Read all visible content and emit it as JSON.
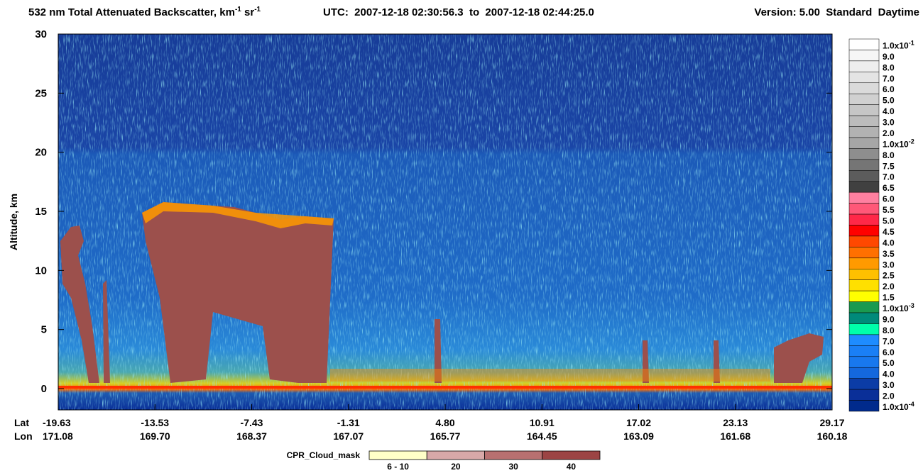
{
  "chart_data": {
    "type": "curtain",
    "title": {
      "text1": "532 nm Total Attenuated Backscatter, km",
      "sup1": "-1",
      "text2": " sr",
      "sup2": "-1"
    },
    "utc": "UTC:  2007-12-18 02:30:56.3  to  2007-12-18 02:44:25.0",
    "version": "Version: 5.00  Standard  Daytime",
    "y_label": "Altitude, km",
    "ylim": [
      -1.8,
      30
    ],
    "yticks": [
      0,
      5,
      10,
      15,
      20,
      25,
      30
    ],
    "lat_label": "Lat",
    "lon_label": "Lon",
    "lat": [
      "-19.63",
      "-13.53",
      "-7.43",
      "-1.31",
      "4.80",
      "10.91",
      "17.02",
      "23.13",
      "29.17"
    ],
    "lon": [
      "171.08",
      "169.70",
      "168.37",
      "167.07",
      "165.77",
      "164.45",
      "163.09",
      "161.68",
      "160.18"
    ],
    "colorbar": {
      "labels": [
        {
          "mantissa": "1.0x10",
          "exponent": "-1"
        },
        "9.0",
        "8.0",
        "7.0",
        "6.0",
        "5.0",
        "4.0",
        "3.0",
        "2.0",
        {
          "mantissa": "1.0x10",
          "exponent": "-2"
        },
        "8.0",
        "7.5",
        "7.0",
        "6.5",
        "6.0",
        "5.5",
        "5.0",
        "4.5",
        "4.0",
        "3.5",
        "3.0",
        "2.5",
        "2.0",
        "1.5",
        {
          "mantissa": "1.0x10",
          "exponent": "-3"
        },
        "9.0",
        "8.0",
        "7.0",
        "6.0",
        "5.0",
        "4.0",
        "3.0",
        "2.0",
        {
          "mantissa": "1.0x10",
          "exponent": "-4"
        }
      ],
      "colors": [
        "#ffffff",
        "#f6f6f6",
        "#eeeeee",
        "#e4e4e4",
        "#dadada",
        "#d0d0d0",
        "#c6c6c6",
        "#bcbcbc",
        "#b2b2b2",
        "#a6a6a6",
        "#8e8e8e",
        "#757575",
        "#5c5c5c",
        "#404040",
        "#ff80a0",
        "#ff5878",
        "#ff2848",
        "#ff0000",
        "#ff4800",
        "#ff7000",
        "#ff9a00",
        "#ffc000",
        "#ffe000",
        "#ffff00",
        "#1a9a50",
        "#008a7a",
        "#00ffaa",
        "#1e8cff",
        "#1a7ff5",
        "#1878ee",
        "#1468dd",
        "#0b3ca6",
        "#0a2f98",
        "#002a8c"
      ]
    },
    "cloud_mask": {
      "title": "CPR_Cloud_mask",
      "labels": [
        "6 - 10",
        "20",
        "30",
        "40"
      ],
      "colors": [
        "#ffffc8",
        "#d8a8a8",
        "#b87070",
        "#9c4444"
      ]
    }
  }
}
